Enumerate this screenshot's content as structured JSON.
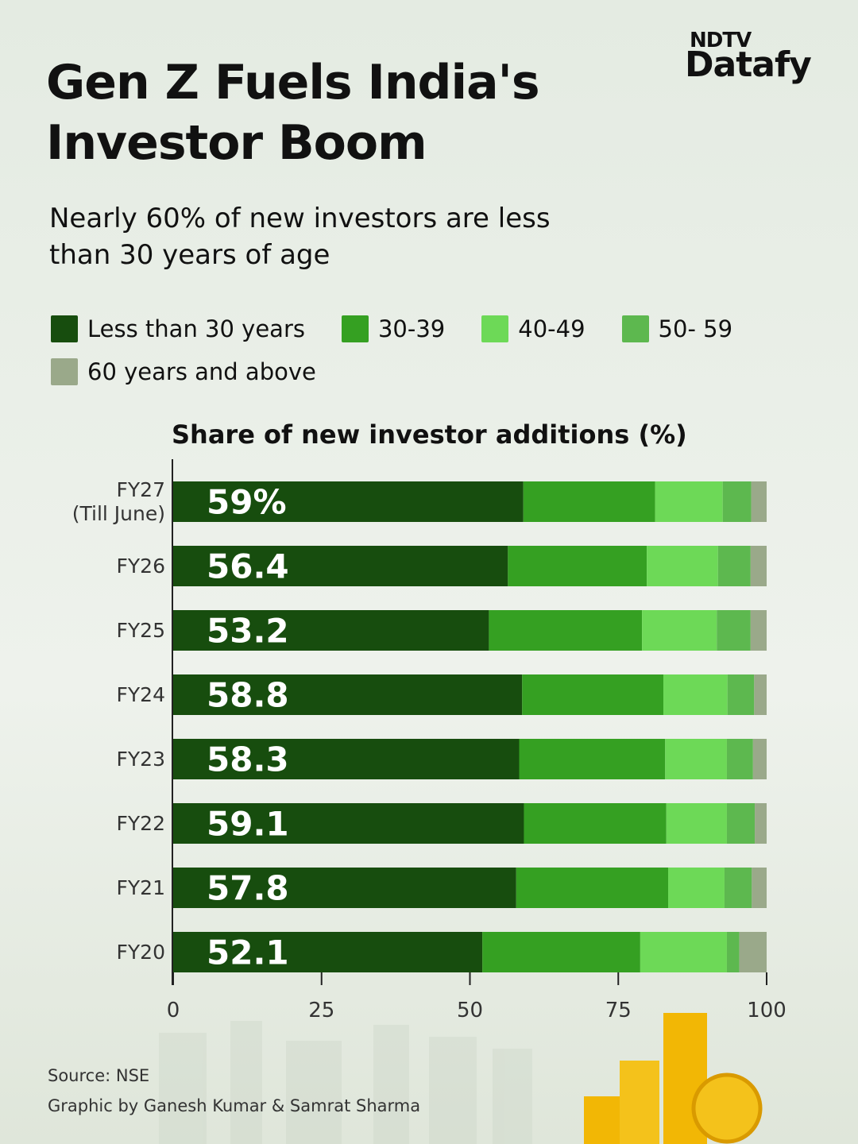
{
  "logo": {
    "top": "NDTV",
    "bottom": "Datafy"
  },
  "chart_data": {
    "type": "stacked_barh",
    "title": "Gen Z Fuels India's Investor Boom",
    "subtitle": "Nearly 60% of new investors are less than 30 years of age",
    "axis_title": "Share of new investor additions (%)",
    "categories": [
      "FY27\n(Till June)",
      "FY26",
      "FY25",
      "FY24",
      "FY23",
      "FY22",
      "FY21",
      "FY20"
    ],
    "series": [
      {
        "name": "Less than 30 years",
        "color": "#174d0e",
        "values": [
          59,
          56.4,
          53.2,
          58.8,
          58.3,
          59.1,
          57.8,
          52.1
        ],
        "value_labels": [
          "59%",
          "56.4",
          "53.2",
          "58.8",
          "58.3",
          "59.1",
          "57.8",
          "52.1"
        ]
      },
      {
        "name": "30-39",
        "color": "#35a022",
        "values": [
          22.2,
          23.4,
          25.8,
          23.8,
          24.6,
          24.0,
          25.6,
          26.6
        ]
      },
      {
        "name": "40-49",
        "color": "#6dd957",
        "values": [
          11.4,
          12.0,
          12.6,
          10.8,
          10.4,
          10.2,
          9.5,
          14.6
        ]
      },
      {
        "name": "50- 59",
        "color": "#5db84f",
        "values": [
          4.8,
          5.5,
          5.7,
          4.5,
          4.4,
          4.7,
          4.6,
          2.1
        ]
      },
      {
        "name": "60 years and above",
        "color": "#9aa98a",
        "values": [
          2.6,
          2.7,
          2.7,
          2.1,
          2.3,
          2.0,
          2.5,
          4.6
        ]
      }
    ],
    "xlim": [
      0,
      100
    ],
    "xticks": [
      0,
      25,
      50,
      75,
      100
    ],
    "source": "Source: NSE",
    "credit": "Graphic by Ganesh Kumar & Samrat Sharma"
  }
}
